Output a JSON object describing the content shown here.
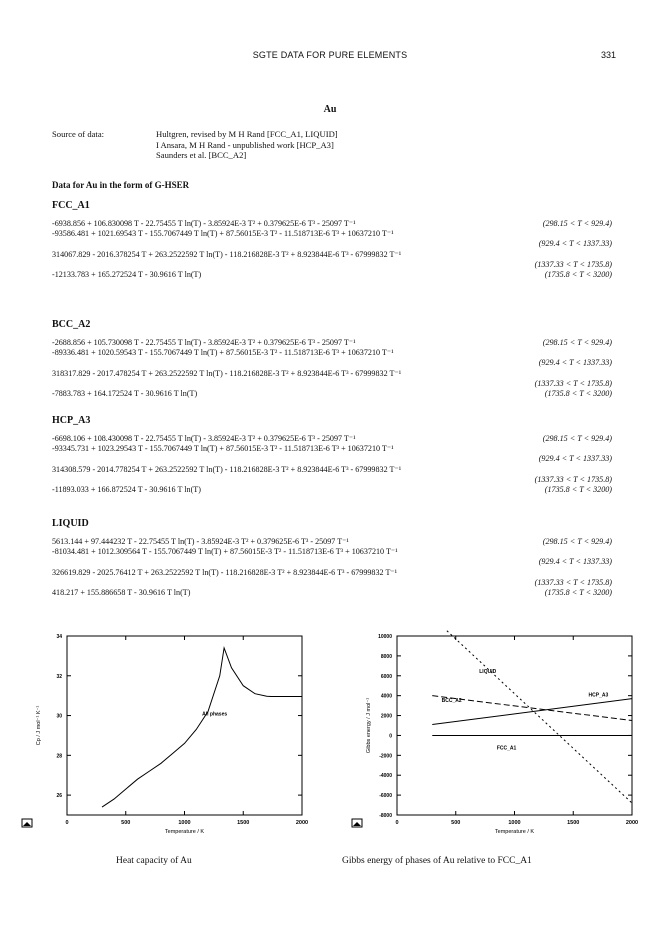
{
  "header": {
    "title": "SGTE DATA FOR PURE ELEMENTS",
    "page": "331"
  },
  "element": "Au",
  "source": {
    "label": "Source of data:",
    "lines": [
      "Hultgren, revised by M H Rand [FCC_A1, LIQUID]",
      "I Ansara, M H Rand - unpublished work [HCP_A3]",
      "Saunders et al. [BCC_A2]"
    ]
  },
  "data_title": "Data for Au in the form of G-HSER",
  "phases": [
    {
      "name": "FCC_A1",
      "equations": [
        {
          "expr": "-6938.856 + 106.830098 T - 22.75455 T ln(T) - 3.85924E-3 T² + 0.379625E-6 T³ - 25097 T⁻¹",
          "range": "(298.15 < T < 929.4)"
        },
        {
          "expr": "-93586.481 + 1021.69543 T - 155.7067449 T ln(T) + 87.56015E-3 T² - 11.518713E-6 T³ + 10637210 T⁻¹",
          "range": "(929.4 < T < 1337.33)"
        },
        {
          "expr": "314067.829 - 2016.378254 T + 263.2522592 T ln(T) - 118.216828E-3 T² + 8.923844E-6 T³ - 67999832 T⁻¹",
          "range": "(1337.33 < T < 1735.8)"
        },
        {
          "expr": "-12133.783 + 165.272524 T - 30.9616 T ln(T)",
          "range": "(1735.8 < T < 3200)"
        }
      ]
    },
    {
      "name": "BCC_A2",
      "equations": [
        {
          "expr": "-2688.856 + 105.730098 T - 22.75455 T ln(T) - 3.85924E-3 T² + 0.379625E-6 T³ - 25097 T⁻¹",
          "range": "(298.15 < T < 929.4)"
        },
        {
          "expr": "-89336.481 + 1020.59543 T - 155.7067449 T ln(T) + 87.56015E-3 T² - 11.518713E-6 T³ + 10637210 T⁻¹",
          "range": "(929.4 < T < 1337.33)"
        },
        {
          "expr": "318317.829 - 2017.478254 T + 263.2522592 T ln(T) - 118.216828E-3 T² + 8.923844E-6 T³ - 67999832 T⁻¹",
          "range": "(1337.33 < T < 1735.8)"
        },
        {
          "expr": "-7883.783 + 164.172524 T - 30.9616 T ln(T)",
          "range": "(1735.8 < T < 3200)"
        }
      ]
    },
    {
      "name": "HCP_A3",
      "equations": [
        {
          "expr": "-6698.106 + 108.430098 T - 22.75455 T ln(T) - 3.85924E-3 T² + 0.379625E-6 T³ - 25097 T⁻¹",
          "range": "(298.15 < T < 929.4)"
        },
        {
          "expr": "-93345.731 + 1023.29543 T - 155.7067449 T ln(T) + 87.56015E-3 T² - 11.518713E-6 T³ + 10637210 T⁻¹",
          "range": "(929.4 < T < 1337.33)"
        },
        {
          "expr": "314308.579 - 2014.778254 T + 263.2522592 T ln(T) - 118.216828E-3 T² + 8.923844E-6 T³ - 67999832 T⁻¹",
          "range": "(1337.33 < T < 1735.8)"
        },
        {
          "expr": "-11893.033 + 166.872524 T - 30.9616 T ln(T)",
          "range": "(1735.8 < T < 3200)"
        }
      ]
    },
    {
      "name": "LIQUID",
      "equations": [
        {
          "expr": "5613.144 + 97.444232 T - 22.75455 T ln(T) - 3.85924E-3 T² + 0.379625E-6 T³ - 25097 T⁻¹",
          "range": "(298.15 < T < 929.4)"
        },
        {
          "expr": "-81034.481 + 1012.309564 T - 155.7067449 T ln(T) + 87.56015E-3 T² - 11.518713E-6 T³ + 10637210 T⁻¹",
          "range": "(929.4 < T < 1337.33)"
        },
        {
          "expr": "326619.829 - 2025.76412 T + 263.2522592 T ln(T) - 118.216828E-3 T² + 8.923844E-6 T³ - 67999832 T⁻¹",
          "range": "(1337.33 < T < 1735.8)"
        },
        {
          "expr": "418.217 + 155.886658 T - 30.9616 T ln(T)",
          "range": "(1735.8 < T < 3200)"
        }
      ]
    }
  ],
  "chart_data": [
    {
      "type": "line",
      "xlabel": "Temperature / K",
      "ylabel": "Cp / J mol⁻¹ K⁻¹",
      "xlim": [
        0,
        2000
      ],
      "ylim": [
        25,
        34
      ],
      "xticks": [
        0,
        500,
        1000,
        1500,
        2000
      ],
      "yticks": [
        26,
        28,
        30,
        32,
        34
      ],
      "series": [
        {
          "name": "All phases",
          "x": [
            298,
            400,
            500,
            600,
            700,
            800,
            900,
            1000,
            1100,
            1200,
            1300,
            1337,
            1400,
            1500,
            1600,
            1700,
            1736,
            1800,
            2000
          ],
          "y": [
            25.4,
            25.8,
            26.3,
            26.8,
            27.2,
            27.6,
            28.1,
            28.6,
            29.3,
            30.2,
            32.0,
            33.4,
            32.4,
            31.5,
            31.1,
            30.97,
            30.96,
            30.96,
            30.96
          ]
        }
      ],
      "label_positions": {
        "All phases": [
          1150,
          30.0
        ]
      }
    },
    {
      "type": "line",
      "xlabel": "Temperature / K",
      "ylabel": "Gibbs energy / J mol⁻¹",
      "xlim": [
        0,
        2000
      ],
      "ylim": [
        -8000,
        10000
      ],
      "xticks": [
        0,
        500,
        1000,
        1500,
        2000
      ],
      "yticks": [
        10000,
        8000,
        6000,
        4000,
        2000,
        0,
        -2000,
        -4000,
        -6000,
        -8000
      ],
      "series": [
        {
          "name": "LIQUID",
          "dash": "2,3",
          "x": [
            300,
            2000
          ],
          "y": [
            11900,
            -6800
          ]
        },
        {
          "name": "BCC_A2",
          "dash": "6,3",
          "x": [
            300,
            2000
          ],
          "y": [
            4000,
            1500
          ]
        },
        {
          "name": "HCP_A3",
          "dash": "",
          "x": [
            300,
            2000
          ],
          "y": [
            1100,
            3700
          ]
        },
        {
          "name": "FCC_A1",
          "dash": "",
          "x": [
            300,
            2000
          ],
          "y": [
            0,
            0
          ]
        }
      ],
      "label_positions": {
        "LIQUID": [
          700,
          6300
        ],
        "BCC_A2": [
          380,
          3350
        ],
        "HCP_A3": [
          1630,
          3900
        ],
        "FCC_A1": [
          850,
          -1400
        ]
      }
    }
  ],
  "captions": [
    "Heat capacity of Au",
    "Gibbs energy of phases of Au relative to FCC_A1"
  ]
}
